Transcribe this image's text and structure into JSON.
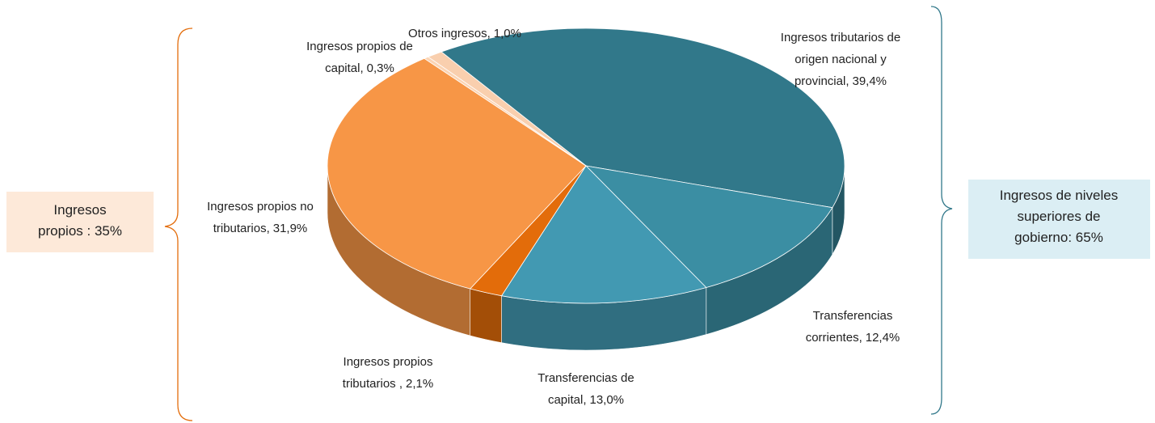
{
  "chart_data": {
    "type": "pie",
    "categories": [
      "Ingresos tributarios de origen nacional y provincial,",
      "Transferencias corrientes,",
      "Transferencias de capital,",
      "Ingresos propios tributarios ,",
      "Ingresos propios no tributarios,",
      "Ingresos propios de capital,",
      "Otros ingresos,"
    ],
    "values": [
      39.4,
      12.4,
      13.0,
      2.1,
      31.9,
      0.3,
      1.0
    ],
    "value_labels": [
      "39,4%",
      "12,4%",
      "13,0%",
      "2,1%",
      "31,9%",
      "0,3%",
      "1,0%"
    ],
    "colors": [
      "#31788a",
      "#3b8ea3",
      "#4299b2",
      "#e36c0a",
      "#f79646",
      "#fbd4b4",
      "#f9cfae"
    ],
    "annotations": [
      "Ingresos propios : 35%",
      "Ingresos de niveles superiores de gobierno: 65%"
    ]
  }
}
